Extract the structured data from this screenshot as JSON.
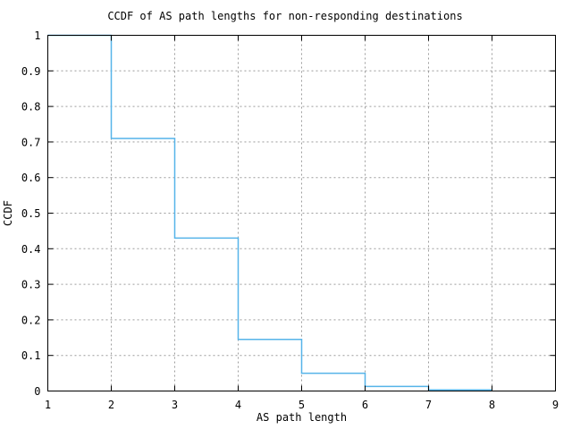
{
  "page": {
    "background": "#ffffff"
  },
  "chart_data": {
    "type": "line",
    "subtype": "ccdf-step-function",
    "title": "CCDF of AS path lengths for non-responding destinations",
    "xlabel": "AS path length",
    "ylabel": "CCDF",
    "xlim": [
      1,
      9
    ],
    "ylim": [
      0,
      1
    ],
    "x_ticks": [
      1,
      2,
      3,
      4,
      5,
      6,
      7,
      8,
      9
    ],
    "x_tick_labels": [
      "1",
      "2",
      "3",
      "4",
      "5",
      "6",
      "7",
      "8",
      "9"
    ],
    "y_ticks": [
      0,
      0.1,
      0.2,
      0.3,
      0.4,
      0.5,
      0.6,
      0.7,
      0.8,
      0.9,
      1
    ],
    "y_tick_labels": [
      "0",
      "0.1",
      "0.2",
      "0.3",
      "0.4",
      "0.5",
      "0.6",
      "0.7",
      "0.8",
      "0.9",
      "1"
    ],
    "grid": true,
    "grid_style": "dashed",
    "legend": "none",
    "line_color": "#56b4e9",
    "grid_color": "#9c9c9c",
    "axis_color": "#000000",
    "series": [
      {
        "name": "CCDF of AS path length",
        "steps": [
          {
            "x_from": 1,
            "x_to": 2,
            "y": 1.0
          },
          {
            "x_from": 2,
            "x_to": 3,
            "y": 0.71
          },
          {
            "x_from": 3,
            "x_to": 4,
            "y": 0.43
          },
          {
            "x_from": 4,
            "x_to": 5,
            "y": 0.145
          },
          {
            "x_from": 5,
            "x_to": 6,
            "y": 0.05
          },
          {
            "x_from": 6,
            "x_to": 7,
            "y": 0.013
          },
          {
            "x_from": 7,
            "x_to": 8,
            "y": 0.003
          }
        ]
      }
    ]
  }
}
